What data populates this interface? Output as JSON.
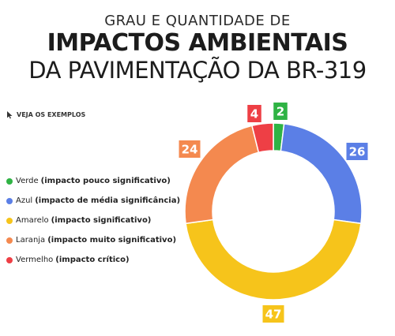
{
  "header": {
    "line1": "GRAU E QUANTIDADE DE",
    "line2": "IMPACTOS AMBIENTAIS",
    "line3": "DA PAVIMENTAÇÃO DA BR-319"
  },
  "examples_link": {
    "label": "VEJA OS EXEMPLOS",
    "icon": "cursor-arrow-icon"
  },
  "legend": [
    {
      "name": "Verde",
      "desc": "(impacto pouco significativo)",
      "color": "#2fb344"
    },
    {
      "name": "Azul",
      "desc": "(impacto de média significância)",
      "color": "#5b7fe6"
    },
    {
      "name": "Amarelo",
      "desc": "(impacto significativo)",
      "color": "#f6c41b"
    },
    {
      "name": "Laranja",
      "desc": "(impacto muito significativo)",
      "color": "#f4894f"
    },
    {
      "name": "Vermelho",
      "desc": "(impacto crítico)",
      "color": "#ee3f45"
    }
  ],
  "chart_data": {
    "type": "pie",
    "donut": true,
    "categories": [
      "Verde",
      "Azul",
      "Amarelo",
      "Laranja",
      "Vermelho"
    ],
    "values": [
      2,
      26,
      47,
      24,
      4
    ],
    "colors": [
      "#2fb344",
      "#5b7fe6",
      "#f6c41b",
      "#f4894f",
      "#ee3f45"
    ],
    "title": "",
    "legend_position": "left"
  }
}
